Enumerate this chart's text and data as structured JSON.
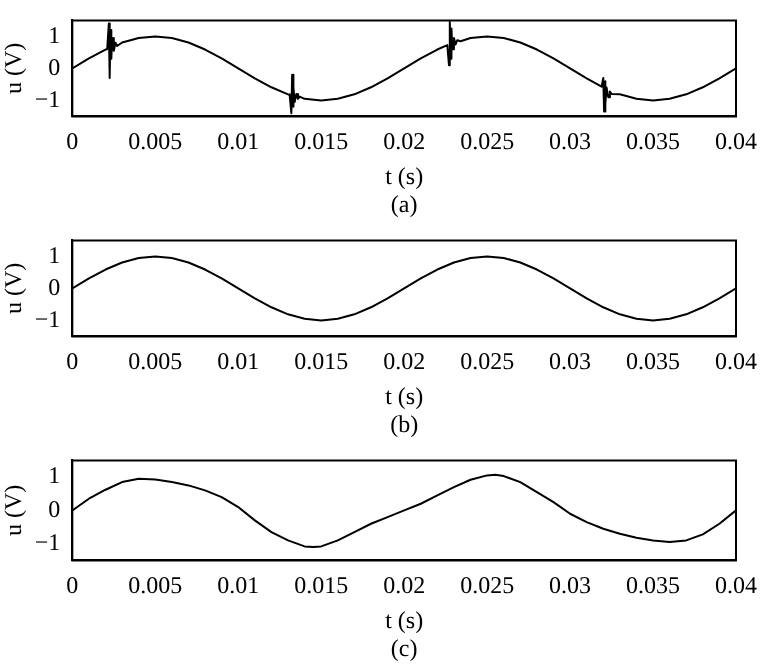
{
  "chart_data": [
    {
      "type": "line",
      "xlabel": "t (s)",
      "ylabel": "u (V)",
      "annotations": [
        "(a)"
      ],
      "xlim": [
        0,
        0.04
      ],
      "xticks": [
        0,
        0.005,
        0.01,
        0.015,
        0.02,
        0.025,
        0.03,
        0.035,
        0.04
      ],
      "ylim": [
        -1.5,
        1.5
      ],
      "yticks": [
        -1,
        0,
        1
      ],
      "grid": false,
      "marker": "none",
      "line_style": "solid",
      "series": [
        {
          "color": "#000000",
          "x": [
            0,
            0.001,
            0.002,
            0.0021,
            0.0022,
            0.00225,
            0.0023,
            0.00235,
            0.0024,
            0.0025,
            0.0026,
            0.0027,
            0.003,
            0.004,
            0.005,
            0.006,
            0.007,
            0.008,
            0.009,
            0.01,
            0.011,
            0.012,
            0.013,
            0.0131,
            0.0132,
            0.01325,
            0.0133,
            0.01335,
            0.0134,
            0.0135,
            0.0136,
            0.0137,
            0.014,
            0.015,
            0.016,
            0.017,
            0.018,
            0.019,
            0.02,
            0.021,
            0.022,
            0.0226,
            0.0227,
            0.02275,
            0.0228,
            0.02285,
            0.0229,
            0.023,
            0.0231,
            0.0232,
            0.0234,
            0.024,
            0.025,
            0.026,
            0.027,
            0.028,
            0.029,
            0.03,
            0.031,
            0.0319,
            0.032,
            0.03205,
            0.0321,
            0.03215,
            0.0322,
            0.0323,
            0.0324,
            0.0325,
            0.033,
            0.034,
            0.035,
            0.036,
            0.037,
            0.038,
            0.039,
            0.04
          ],
          "values": [
            0,
            0.31,
            0.59,
            0.6,
            1.4,
            -0.3,
            1.2,
            0.3,
            0.95,
            0.55,
            0.8,
            0.7,
            0.81,
            0.95,
            1,
            0.95,
            0.81,
            0.59,
            0.31,
            0,
            -0.31,
            -0.59,
            -0.81,
            -0.83,
            -1.4,
            -0.2,
            -1.2,
            -0.6,
            -1.05,
            -0.8,
            -0.95,
            -0.88,
            -0.95,
            -1,
            -0.95,
            -0.81,
            -0.59,
            -0.31,
            0,
            0.31,
            0.59,
            0.73,
            0.1,
            1.45,
            0.3,
            1.25,
            0.6,
            0.95,
            0.75,
            0.88,
            0.85,
            0.95,
            1,
            0.95,
            0.81,
            0.59,
            0.31,
            0,
            -0.31,
            -0.57,
            -0.3,
            -1.35,
            -0.4,
            -1.1,
            -0.6,
            -0.9,
            -0.72,
            -0.8,
            -0.81,
            -0.95,
            -1,
            -0.95,
            -0.81,
            -0.59,
            -0.31,
            0
          ]
        }
      ]
    },
    {
      "type": "line",
      "xlabel": "t (s)",
      "ylabel": "u (V)",
      "annotations": [
        "(b)"
      ],
      "xlim": [
        0,
        0.04
      ],
      "xticks": [
        0,
        0.005,
        0.01,
        0.015,
        0.02,
        0.025,
        0.03,
        0.035,
        0.04
      ],
      "ylim": [
        -1.5,
        1.5
      ],
      "yticks": [
        -1,
        0,
        1
      ],
      "grid": false,
      "marker": "none",
      "line_style": "solid",
      "series": [
        {
          "color": "#000000",
          "x": [
            0,
            0.001,
            0.002,
            0.003,
            0.004,
            0.005,
            0.006,
            0.007,
            0.008,
            0.009,
            0.01,
            0.011,
            0.012,
            0.013,
            0.014,
            0.015,
            0.016,
            0.017,
            0.018,
            0.019,
            0.02,
            0.021,
            0.022,
            0.023,
            0.024,
            0.025,
            0.026,
            0.027,
            0.028,
            0.029,
            0.03,
            0.031,
            0.032,
            0.033,
            0.034,
            0.035,
            0.036,
            0.037,
            0.038,
            0.039,
            0.04
          ],
          "values": [
            0,
            0.31,
            0.59,
            0.81,
            0.95,
            1,
            0.95,
            0.81,
            0.59,
            0.31,
            0,
            -0.31,
            -0.59,
            -0.81,
            -0.95,
            -1,
            -0.95,
            -0.81,
            -0.59,
            -0.31,
            0,
            0.31,
            0.59,
            0.81,
            0.95,
            1,
            0.95,
            0.81,
            0.59,
            0.31,
            0,
            -0.31,
            -0.59,
            -0.81,
            -0.95,
            -1,
            -0.95,
            -0.81,
            -0.59,
            -0.31,
            0
          ]
        }
      ]
    },
    {
      "type": "line",
      "xlabel": "t (s)",
      "ylabel": "u (V)",
      "annotations": [
        "(c)"
      ],
      "xlim": [
        0,
        0.04
      ],
      "xticks": [
        0,
        0.005,
        0.01,
        0.015,
        0.02,
        0.025,
        0.03,
        0.035,
        0.04
      ],
      "ylim": [
        -1.5,
        1.5
      ],
      "yticks": [
        -1,
        0,
        1
      ],
      "grid": false,
      "marker": "none",
      "line_style": "solid",
      "series": [
        {
          "color": "#000000",
          "x": [
            0,
            0.001,
            0.002,
            0.003,
            0.004,
            0.005,
            0.006,
            0.007,
            0.008,
            0.009,
            0.01,
            0.011,
            0.012,
            0.013,
            0.014,
            0.0145,
            0.015,
            0.016,
            0.017,
            0.018,
            0.019,
            0.02,
            0.021,
            0.022,
            0.023,
            0.024,
            0.025,
            0.0255,
            0.026,
            0.027,
            0.028,
            0.029,
            0.03,
            0.031,
            0.032,
            0.033,
            0.034,
            0.035,
            0.036,
            0.037,
            0.038,
            0.039,
            0.04
          ],
          "values": [
            0,
            0.35,
            0.62,
            0.85,
            0.95,
            0.93,
            0.85,
            0.75,
            0.6,
            0.4,
            0.1,
            -0.3,
            -0.65,
            -0.9,
            -1.08,
            -1.1,
            -1.08,
            -0.9,
            -0.65,
            -0.4,
            -0.2,
            0,
            0.2,
            0.45,
            0.7,
            0.92,
            1.05,
            1.07,
            1.03,
            0.85,
            0.55,
            0.25,
            -0.1,
            -0.35,
            -0.55,
            -0.7,
            -0.82,
            -0.9,
            -0.95,
            -0.9,
            -0.72,
            -0.4,
            0
          ]
        }
      ]
    }
  ]
}
